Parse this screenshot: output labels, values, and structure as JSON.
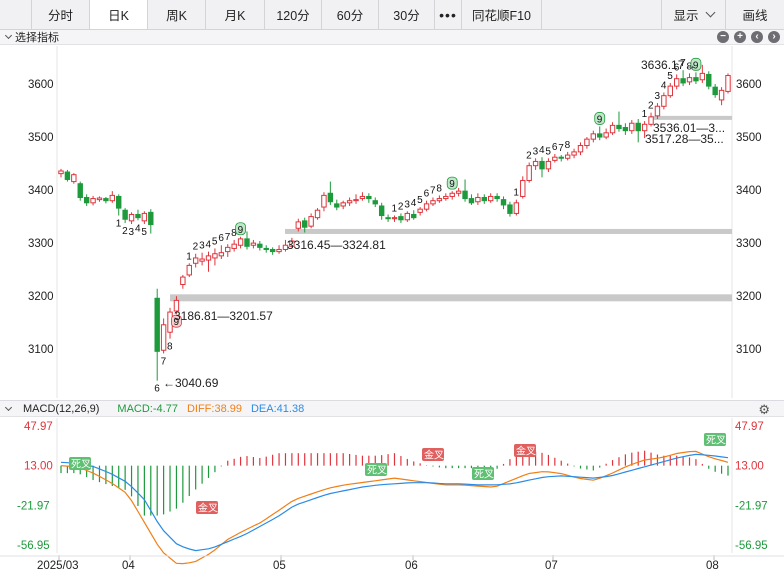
{
  "toolbar": {
    "tabs": [
      "分时",
      "日K",
      "周K",
      "月K",
      "120分",
      "60分",
      "30分"
    ],
    "active_tab": "日K",
    "more": "•••",
    "f10": "同花顺F10",
    "display_label": "显示",
    "draw_label": "画线"
  },
  "main_panel": {
    "indicator_select": "选择指标",
    "price_ticks": [
      "3600",
      "3500",
      "3400",
      "3300",
      "3200",
      "3100"
    ]
  },
  "annotations": {
    "low_label": "←3040.69",
    "high_label": "3636.17→",
    "zones": [
      {
        "label": "3316.45—3324.81",
        "low": 3316.45,
        "high": 3324.81
      },
      {
        "label": "3186.81—3201.57",
        "low": 3186.81,
        "high": 3201.57
      },
      {
        "label": "3536.01—3...",
        "low": 3536.01,
        "high": 3540
      },
      {
        "label": "3517.28—35...",
        "low": 3517.28,
        "high": 3520
      }
    ]
  },
  "macd": {
    "title": "MACD(12,26,9)",
    "macd_value": "MACD:-4.77",
    "diff_value": "DIFF:38.99",
    "dea_value": "DEA:41.38",
    "axis_ticks": [
      "47.97",
      "13.00",
      "-21.97",
      "-56.95"
    ],
    "cross_labels": {
      "golden": "金叉",
      "dead": "死叉"
    }
  },
  "x_axis": [
    "2025/03",
    "04",
    "05",
    "06",
    "07",
    "08"
  ],
  "colors": {
    "up": "#e0343c",
    "down": "#1d9a3c",
    "diff": "#f07f16",
    "dea": "#2a8be6",
    "zone": "#c9c9c9"
  },
  "chart_data": {
    "type": "candlestick",
    "x_axis_labels": [
      "2025/03",
      "04",
      "05",
      "06",
      "07",
      "08"
    ],
    "y_range": [
      3030,
      3660
    ],
    "candles": [
      {
        "o": 3431,
        "c": 3436,
        "h": 3440,
        "l": 3424
      },
      {
        "o": 3434,
        "c": 3420,
        "h": 3438,
        "l": 3416
      },
      {
        "o": 3416,
        "c": 3429,
        "h": 3432,
        "l": 3412
      },
      {
        "o": 3412,
        "c": 3386,
        "h": 3416,
        "l": 3380
      },
      {
        "o": 3386,
        "c": 3376,
        "h": 3392,
        "l": 3370
      },
      {
        "o": 3376,
        "c": 3384,
        "h": 3389,
        "l": 3371
      },
      {
        "o": 3382,
        "c": 3385,
        "h": 3388,
        "l": 3378
      },
      {
        "o": 3384,
        "c": 3380,
        "h": 3387,
        "l": 3375
      },
      {
        "o": 3380,
        "c": 3390,
        "h": 3398,
        "l": 3376
      },
      {
        "o": 3388,
        "c": 3366,
        "h": 3392,
        "l": 3352
      },
      {
        "o": 3362,
        "c": 3345,
        "h": 3366,
        "l": 3338
      },
      {
        "o": 3342,
        "c": 3354,
        "h": 3358,
        "l": 3336
      },
      {
        "o": 3354,
        "c": 3348,
        "h": 3363,
        "l": 3343
      },
      {
        "o": 3342,
        "c": 3356,
        "h": 3360,
        "l": 3336
      },
      {
        "o": 3358,
        "c": 3335,
        "h": 3364,
        "l": 3318
      },
      {
        "o": 3196,
        "c": 3096,
        "h": 3214,
        "l": 3040.69
      },
      {
        "o": 3098,
        "c": 3146,
        "h": 3158,
        "l": 3092
      },
      {
        "o": 3132,
        "c": 3170,
        "h": 3178,
        "l": 3120
      },
      {
        "o": 3172,
        "c": 3192,
        "h": 3200,
        "l": 3166
      },
      {
        "o": 3222,
        "c": 3236,
        "h": 3240,
        "l": 3214
      },
      {
        "o": 3240,
        "c": 3258,
        "h": 3262,
        "l": 3236
      },
      {
        "o": 3262,
        "c": 3272,
        "h": 3280,
        "l": 3254
      },
      {
        "o": 3266,
        "c": 3270,
        "h": 3282,
        "l": 3258
      },
      {
        "o": 3268,
        "c": 3276,
        "h": 3284,
        "l": 3246
      },
      {
        "o": 3272,
        "c": 3280,
        "h": 3290,
        "l": 3258
      },
      {
        "o": 3276,
        "c": 3282,
        "h": 3296,
        "l": 3270
      },
      {
        "o": 3284,
        "c": 3292,
        "h": 3298,
        "l": 3274
      },
      {
        "o": 3290,
        "c": 3298,
        "h": 3306,
        "l": 3284
      },
      {
        "o": 3296,
        "c": 3308,
        "h": 3312,
        "l": 3290
      },
      {
        "o": 3308,
        "c": 3294,
        "h": 3322,
        "l": 3288
      },
      {
        "o": 3296,
        "c": 3300,
        "h": 3306,
        "l": 3290
      },
      {
        "o": 3298,
        "c": 3292,
        "h": 3304,
        "l": 3286
      },
      {
        "o": 3290,
        "c": 3288,
        "h": 3296,
        "l": 3282
      },
      {
        "o": 3288,
        "c": 3284,
        "h": 3292,
        "l": 3278
      },
      {
        "o": 3284,
        "c": 3288,
        "h": 3296,
        "l": 3280
      },
      {
        "o": 3288,
        "c": 3296,
        "h": 3306,
        "l": 3284
      },
      {
        "o": 3294,
        "c": 3304,
        "h": 3310,
        "l": 3292
      },
      {
        "o": 3328,
        "c": 3340,
        "h": 3346,
        "l": 3322
      },
      {
        "o": 3342,
        "c": 3330,
        "h": 3348,
        "l": 3320
      },
      {
        "o": 3332,
        "c": 3350,
        "h": 3356,
        "l": 3328
      },
      {
        "o": 3348,
        "c": 3362,
        "h": 3366,
        "l": 3344
      },
      {
        "o": 3368,
        "c": 3390,
        "h": 3396,
        "l": 3360
      },
      {
        "o": 3394,
        "c": 3378,
        "h": 3416,
        "l": 3372
      },
      {
        "o": 3374,
        "c": 3368,
        "h": 3382,
        "l": 3362
      },
      {
        "o": 3370,
        "c": 3376,
        "h": 3380,
        "l": 3364
      },
      {
        "o": 3376,
        "c": 3380,
        "h": 3386,
        "l": 3370
      },
      {
        "o": 3380,
        "c": 3382,
        "h": 3392,
        "l": 3374
      },
      {
        "o": 3384,
        "c": 3388,
        "h": 3396,
        "l": 3380
      },
      {
        "o": 3388,
        "c": 3384,
        "h": 3394,
        "l": 3376
      },
      {
        "o": 3380,
        "c": 3374,
        "h": 3386,
        "l": 3368
      },
      {
        "o": 3370,
        "c": 3352,
        "h": 3376,
        "l": 3344
      },
      {
        "o": 3348,
        "c": 3346,
        "h": 3354,
        "l": 3340
      },
      {
        "o": 3346,
        "c": 3348,
        "h": 3352,
        "l": 3340
      },
      {
        "o": 3350,
        "c": 3344,
        "h": 3356,
        "l": 3338
      },
      {
        "o": 3344,
        "c": 3356,
        "h": 3360,
        "l": 3340
      },
      {
        "o": 3354,
        "c": 3348,
        "h": 3362,
        "l": 3344
      },
      {
        "o": 3358,
        "c": 3364,
        "h": 3368,
        "l": 3352
      },
      {
        "o": 3364,
        "c": 3374,
        "h": 3380,
        "l": 3360
      },
      {
        "o": 3374,
        "c": 3380,
        "h": 3386,
        "l": 3370
      },
      {
        "o": 3380,
        "c": 3384,
        "h": 3390,
        "l": 3376
      },
      {
        "o": 3384,
        "c": 3388,
        "h": 3394,
        "l": 3380
      },
      {
        "o": 3388,
        "c": 3394,
        "h": 3398,
        "l": 3382
      },
      {
        "o": 3394,
        "c": 3398,
        "h": 3404,
        "l": 3388
      },
      {
        "o": 3398,
        "c": 3384,
        "h": 3420,
        "l": 3378
      },
      {
        "o": 3384,
        "c": 3376,
        "h": 3392,
        "l": 3372
      },
      {
        "o": 3378,
        "c": 3386,
        "h": 3394,
        "l": 3372
      },
      {
        "o": 3386,
        "c": 3380,
        "h": 3392,
        "l": 3374
      },
      {
        "o": 3380,
        "c": 3388,
        "h": 3394,
        "l": 3376
      },
      {
        "o": 3388,
        "c": 3384,
        "h": 3394,
        "l": 3378
      },
      {
        "o": 3382,
        "c": 3372,
        "h": 3388,
        "l": 3364
      },
      {
        "o": 3372,
        "c": 3356,
        "h": 3378,
        "l": 3350
      },
      {
        "o": 3356,
        "c": 3376,
        "h": 3382,
        "l": 3352
      },
      {
        "o": 3388,
        "c": 3418,
        "h": 3426,
        "l": 3384
      },
      {
        "o": 3418,
        "c": 3446,
        "h": 3452,
        "l": 3414
      },
      {
        "o": 3446,
        "c": 3454,
        "h": 3460,
        "l": 3438
      },
      {
        "o": 3454,
        "c": 3440,
        "h": 3462,
        "l": 3424
      },
      {
        "o": 3440,
        "c": 3454,
        "h": 3460,
        "l": 3434
      },
      {
        "o": 3456,
        "c": 3462,
        "h": 3468,
        "l": 3452
      },
      {
        "o": 3462,
        "c": 3460,
        "h": 3466,
        "l": 3454
      },
      {
        "o": 3460,
        "c": 3466,
        "h": 3472,
        "l": 3456
      },
      {
        "o": 3466,
        "c": 3472,
        "h": 3478,
        "l": 3460
      },
      {
        "o": 3472,
        "c": 3484,
        "h": 3490,
        "l": 3466
      },
      {
        "o": 3484,
        "c": 3496,
        "h": 3500,
        "l": 3478
      },
      {
        "o": 3496,
        "c": 3506,
        "h": 3512,
        "l": 3490
      },
      {
        "o": 3506,
        "c": 3500,
        "h": 3520,
        "l": 3494
      },
      {
        "o": 3500,
        "c": 3508,
        "h": 3516,
        "l": 3496
      },
      {
        "o": 3508,
        "c": 3522,
        "h": 3528,
        "l": 3504
      },
      {
        "o": 3522,
        "c": 3516,
        "h": 3548,
        "l": 3510
      },
      {
        "o": 3518,
        "c": 3512,
        "h": 3526,
        "l": 3504
      },
      {
        "o": 3512,
        "c": 3526,
        "h": 3532,
        "l": 3506
      },
      {
        "o": 3526,
        "c": 3512,
        "h": 3534,
        "l": 3490
      },
      {
        "o": 3512,
        "c": 3524,
        "h": 3530,
        "l": 3498
      },
      {
        "o": 3524,
        "c": 3538,
        "h": 3546,
        "l": 3520
      },
      {
        "o": 3540,
        "c": 3558,
        "h": 3564,
        "l": 3534
      },
      {
        "o": 3558,
        "c": 3578,
        "h": 3584,
        "l": 3552
      },
      {
        "o": 3578,
        "c": 3596,
        "h": 3602,
        "l": 3574
      },
      {
        "o": 3596,
        "c": 3610,
        "h": 3618,
        "l": 3590
      },
      {
        "o": 3610,
        "c": 3602,
        "h": 3626,
        "l": 3596
      },
      {
        "o": 3604,
        "c": 3612,
        "h": 3620,
        "l": 3598
      },
      {
        "o": 3612,
        "c": 3606,
        "h": 3622,
        "l": 3600
      },
      {
        "o": 3608,
        "c": 3620,
        "h": 3636.17,
        "l": 3602
      },
      {
        "o": 3618,
        "c": 3596,
        "h": 3624,
        "l": 3590
      },
      {
        "o": 3594,
        "c": 3580,
        "h": 3600,
        "l": 3574
      },
      {
        "o": 3570,
        "c": 3588,
        "h": 3594,
        "l": 3560
      },
      {
        "o": 3586,
        "c": 3616,
        "h": 3620,
        "l": 3582
      }
    ],
    "macd": {
      "y_range": [
        -56.95,
        47.97
      ],
      "diff_approx": [
        35,
        34,
        28,
        20,
        10,
        -15,
        -40,
        -52,
        -50,
        -42,
        -30,
        -22,
        -15,
        -5,
        5,
        10,
        15,
        18,
        20,
        22,
        24,
        22,
        20,
        18,
        18,
        17,
        16,
        22,
        28,
        30,
        28,
        24,
        22,
        28,
        35,
        40,
        42,
        46,
        48,
        42,
        38
      ],
      "dea_approx": [
        38,
        37,
        34,
        28,
        20,
        5,
        -20,
        -35,
        -40,
        -38,
        -32,
        -26,
        -18,
        -10,
        0,
        5,
        10,
        13,
        16,
        18,
        19,
        20,
        20,
        19,
        19,
        18,
        18,
        19,
        22,
        25,
        26,
        25,
        24,
        26,
        30,
        34,
        38,
        42,
        45,
        44,
        42
      ]
    }
  }
}
